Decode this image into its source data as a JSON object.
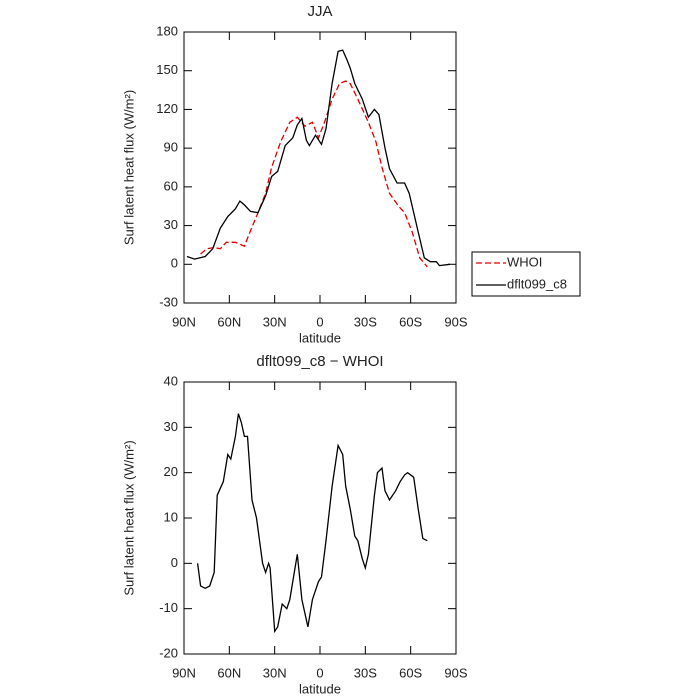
{
  "chart_data": [
    {
      "type": "line",
      "title": "JJA",
      "xlabel": "latitude",
      "ylabel": "Surf latent heat flux (W/m²)",
      "xlim": [
        90,
        -90
      ],
      "ylim": [
        -30,
        180
      ],
      "xticks": [
        {
          "value": 90,
          "label": "90N"
        },
        {
          "value": 60,
          "label": "60N"
        },
        {
          "value": 30,
          "label": "30N"
        },
        {
          "value": 0,
          "label": "0"
        },
        {
          "value": -30,
          "label": "30S"
        },
        {
          "value": -60,
          "label": "60S"
        },
        {
          "value": -90,
          "label": "90S"
        }
      ],
      "yticks": [
        -30,
        0,
        30,
        60,
        90,
        120,
        150,
        180
      ],
      "legend": "right",
      "series": [
        {
          "name": "WHOI",
          "color": "#e00000",
          "dash": true,
          "x": [
            79,
            75,
            70,
            66,
            62,
            56,
            50,
            46,
            41,
            36,
            32,
            26,
            20,
            15,
            10,
            5,
            1,
            -3,
            -8,
            -13,
            -17,
            -20,
            -25,
            -32,
            -37,
            -41,
            -46,
            -52,
            -56,
            -61,
            -66,
            -71
          ],
          "values": [
            8,
            12,
            13,
            12,
            17,
            17,
            14,
            26,
            40,
            55,
            75,
            95,
            110,
            114,
            107,
            110,
            98,
            110,
            128,
            140,
            142,
            140,
            128,
            110,
            95,
            75,
            55,
            45,
            40,
            25,
            5,
            -2
          ]
        },
        {
          "name": "dflt099_c8",
          "color": "#000000",
          "dash": false,
          "x": [
            88,
            83,
            76,
            71,
            66,
            61,
            56,
            53,
            50,
            46,
            41,
            36,
            32,
            28,
            23,
            18,
            15,
            12,
            9,
            7,
            3,
            -1,
            -4,
            -8,
            -12,
            -15,
            -18,
            -20,
            -23,
            -28,
            -32,
            -36,
            -39,
            -43,
            -46,
            -51,
            -56,
            -59,
            -65,
            -69,
            -73,
            -77,
            -79,
            -86
          ],
          "values": [
            6,
            4,
            6,
            12,
            28,
            37,
            43,
            49,
            46,
            41,
            40,
            53,
            68,
            72,
            92,
            98,
            108,
            113,
            96,
            92,
            100,
            93,
            105,
            140,
            165,
            166,
            158,
            152,
            140,
            128,
            114,
            120,
            116,
            90,
            74,
            63,
            63,
            55,
            25,
            5,
            2,
            2,
            -1,
            0
          ]
        }
      ]
    },
    {
      "type": "line",
      "title": "dflt099_c8 − WHOI",
      "xlabel": "latitude",
      "ylabel": "Surf latent heat flux (W/m²)",
      "xlim": [
        90,
        -90
      ],
      "ylim": [
        -20,
        40
      ],
      "xticks": [
        {
          "value": 90,
          "label": "90N"
        },
        {
          "value": 60,
          "label": "60N"
        },
        {
          "value": 30,
          "label": "30N"
        },
        {
          "value": 0,
          "label": "0"
        },
        {
          "value": -30,
          "label": "30S"
        },
        {
          "value": -60,
          "label": "60S"
        },
        {
          "value": -90,
          "label": "90S"
        }
      ],
      "yticks": [
        -20,
        -10,
        0,
        10,
        20,
        30,
        40
      ],
      "series": [
        {
          "color": "#000000",
          "dash": false,
          "x": [
            81,
            79,
            76,
            73,
            70,
            68,
            64,
            61,
            59,
            56,
            54,
            52,
            50,
            48,
            45,
            42,
            38,
            36,
            34,
            33,
            30,
            28,
            25,
            22,
            20,
            17,
            15,
            12,
            8,
            5,
            1,
            -1,
            -4,
            -8,
            -12,
            -15,
            -17,
            -20,
            -23,
            -25,
            -28,
            -30,
            -32,
            -36,
            -38,
            -41,
            -43,
            -46,
            -50,
            -53,
            -56,
            -58,
            -62,
            -65,
            -68,
            -71
          ],
          "values": [
            0,
            -5,
            -5.5,
            -5,
            -2,
            15,
            18,
            24,
            23,
            28,
            33,
            31,
            28,
            28,
            14,
            10,
            0,
            -2,
            0,
            -1,
            -15,
            -14,
            -9,
            -10,
            -8,
            -2,
            2,
            -8,
            -14,
            -8,
            -4,
            -3,
            5,
            17,
            26,
            24,
            17,
            12,
            6,
            5,
            1,
            -1,
            2,
            15,
            20,
            21,
            16,
            14,
            16,
            18,
            19.5,
            20,
            19,
            12,
            5.5,
            5
          ]
        }
      ]
    }
  ]
}
